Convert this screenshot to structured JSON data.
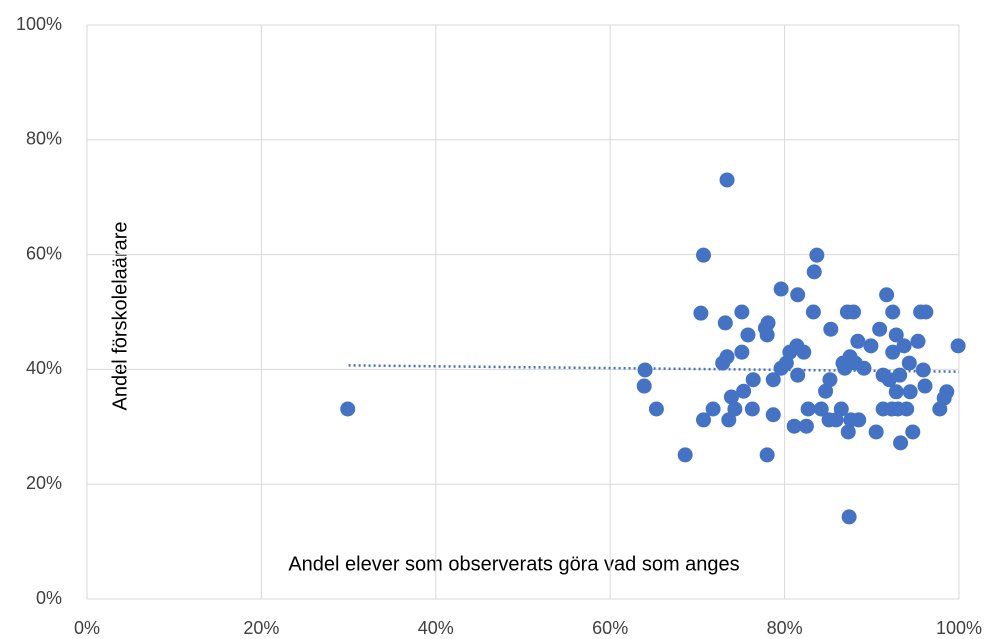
{
  "chart_data": {
    "type": "scatter",
    "xlabel": "Andel elever som observerats göra vad som anges",
    "ylabel": "Andel förskolelaärare",
    "color": "#4472c4",
    "grid": true,
    "xlim": [
      0,
      100
    ],
    "ylim": [
      0,
      100
    ],
    "xticks": [
      {
        "value": 0,
        "label": "0%"
      },
      {
        "value": 20,
        "label": "20%"
      },
      {
        "value": 40,
        "label": "40%"
      },
      {
        "value": 60,
        "label": "60%"
      },
      {
        "value": 80,
        "label": "80%"
      },
      {
        "value": 100,
        "label": "100%"
      }
    ],
    "yticks": [
      {
        "value": 0,
        "label": "0%"
      },
      {
        "value": 20,
        "label": "20%"
      },
      {
        "value": 40,
        "label": "40%"
      },
      {
        "value": 60,
        "label": "60%"
      },
      {
        "value": 80,
        "label": "80%"
      },
      {
        "value": 100,
        "label": "100%"
      }
    ],
    "x": [
      29.9,
      64,
      63.9,
      65.3,
      68.6,
      70.4,
      70.7,
      70.7,
      71.8,
      73.4,
      73.2,
      72.9,
      73.4,
      73.6,
      73.9,
      74.3,
      75.1,
      75.1,
      75.3,
      75.8,
      76.3,
      76.4,
      77.8,
      78.1,
      78,
      78,
      78.7,
      78.7,
      79.6,
      79.6,
      80.2,
      80.6,
      81.1,
      81.4,
      81.5,
      81.5,
      82.2,
      82.5,
      82.7,
      83.3,
      83.4,
      83.7,
      84.2,
      84.7,
      85.1,
      85.2,
      85.3,
      85.9,
      86.5,
      86.7,
      86.9,
      87.2,
      87.3,
      87.4,
      87.5,
      87.6,
      87.9,
      88.1,
      88.4,
      88.5,
      89.1,
      89.9,
      90.5,
      90.9,
      91.3,
      91.3,
      91.7,
      92,
      92.3,
      92.4,
      92.4,
      92.8,
      93,
      92.8,
      93.2,
      93.3,
      93.7,
      94,
      94.3,
      94.4,
      94.7,
      95.3,
      95.6,
      95.9,
      96.1,
      96.2,
      97.8,
      98.3,
      98.6,
      99.9
    ],
    "values": [
      33.1,
      39.9,
      37.1,
      33.1,
      25.1,
      49.8,
      59.9,
      31.2,
      33.1,
      73,
      48.1,
      41.1,
      42.2,
      31.2,
      35.2,
      33.1,
      50,
      43,
      36.2,
      46,
      33.1,
      38.2,
      47.2,
      48.1,
      46,
      25.1,
      32.1,
      38.2,
      54,
      40.2,
      41.1,
      43,
      30.1,
      44.1,
      53,
      39,
      43,
      30.1,
      33.1,
      50,
      57,
      59.9,
      33.1,
      36.2,
      31.2,
      38.2,
      47,
      31.2,
      33.1,
      41.1,
      40.2,
      50,
      29.1,
      14.3,
      42.2,
      31.2,
      50,
      41.1,
      44.9,
      31.2,
      40.2,
      44.1,
      29.1,
      47,
      39,
      33.1,
      53,
      38.2,
      33.1,
      50,
      43,
      36.1,
      33.1,
      46,
      39,
      27.2,
      44.1,
      33.1,
      41.1,
      36.1,
      29.1,
      44.9,
      50,
      39.9,
      37.1,
      50,
      33.1,
      35,
      36.1,
      44.1
    ],
    "trendline": {
      "x": [
        30,
        100
      ],
      "values": [
        40.7,
        39.6
      ]
    }
  }
}
